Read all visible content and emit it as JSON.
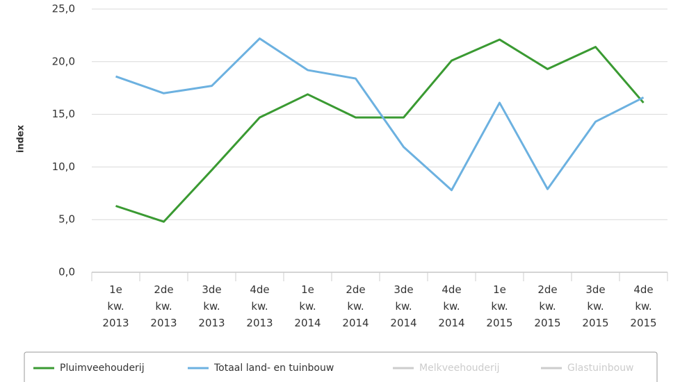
{
  "chart_data": {
    "type": "line",
    "y_label": "index",
    "categories": [
      "1e kw. 2013",
      "2de kw. 2013",
      "3de kw. 2013",
      "4de kw. 2013",
      "1e kw. 2014",
      "2de kw. 2014",
      "3de kw. 2014",
      "4de kw. 2014",
      "1e kw. 2015",
      "2de kw. 2015",
      "3de kw. 2015",
      "4de kw. 2015"
    ],
    "series": [
      {
        "name": "Pluimveehouderij",
        "color": "#3a9a32",
        "values": [
          6.3,
          4.8,
          9.7,
          14.7,
          16.9,
          14.7,
          14.7,
          20.1,
          22.1,
          19.3,
          21.4,
          16.1
        ]
      },
      {
        "name": "Totaal land- en tuinbouw",
        "color": "#6cb1e0",
        "values": [
          18.6,
          17.0,
          17.7,
          22.2,
          19.2,
          18.4,
          11.9,
          7.8,
          16.1,
          7.9,
          14.3,
          16.6
        ]
      },
      {
        "name": "Melkveehouderij",
        "color": "#cccccc",
        "hidden": true,
        "values": [
          null,
          null,
          null,
          null,
          null,
          null,
          null,
          null,
          null,
          null,
          null,
          null
        ]
      },
      {
        "name": "Glastuinbouw",
        "color": "#cccccc",
        "hidden": true,
        "values": [
          null,
          null,
          null,
          null,
          null,
          null,
          null,
          null,
          null,
          null,
          null,
          null
        ]
      }
    ],
    "ylim": [
      0,
      25
    ],
    "yticks": [
      {
        "value": 0,
        "label": "0,0"
      },
      {
        "value": 5,
        "label": "5,0"
      },
      {
        "value": 10,
        "label": "10,0"
      },
      {
        "value": 15,
        "label": "15,0"
      },
      {
        "value": 20,
        "label": "20,0"
      },
      {
        "value": 25,
        "label": "25,0"
      }
    ],
    "grid": true
  }
}
